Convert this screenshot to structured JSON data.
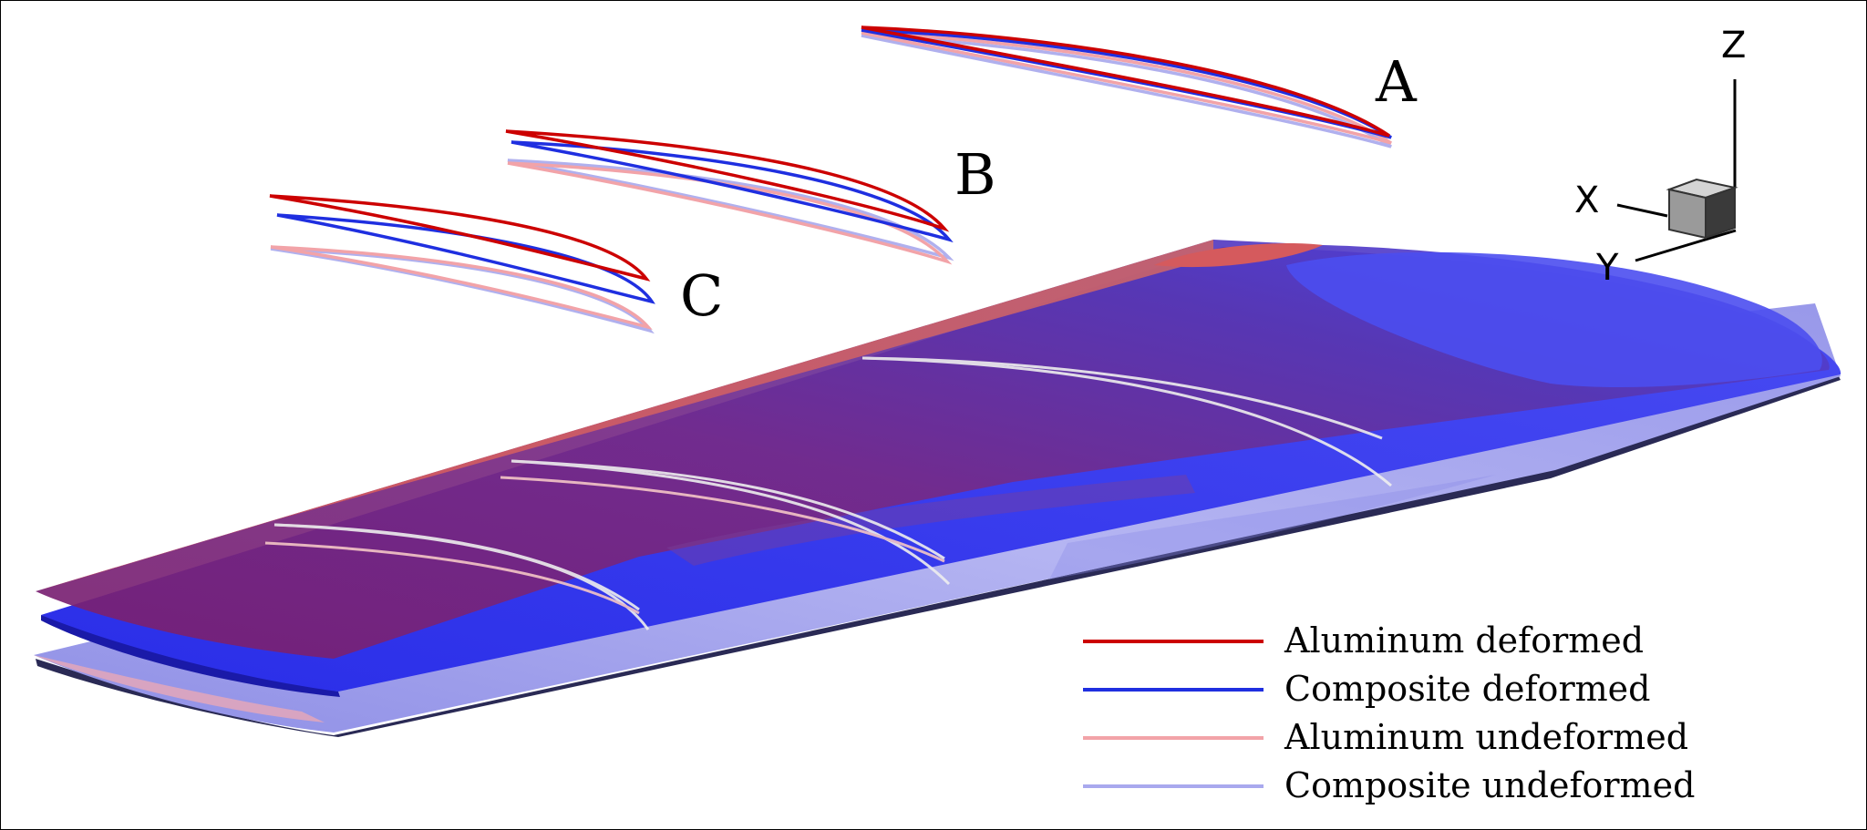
{
  "sections": [
    {
      "label": "A"
    },
    {
      "label": "B"
    },
    {
      "label": "C"
    }
  ],
  "axes": {
    "x": "X",
    "y": "Y",
    "z": "Z"
  },
  "legend": [
    {
      "label": "Aluminum deformed",
      "color": "#cc0000"
    },
    {
      "label": "Composite deformed",
      "color": "#1f2fe0"
    },
    {
      "label": "Aluminum undeformed",
      "color": "#f2a3a8"
    },
    {
      "label": "Composite undeformed",
      "color": "#a9a9ee"
    }
  ],
  "colors": {
    "aluminum_surface": "#c84b50",
    "composite_surface": "#3c3ff0",
    "undeformed_surface": "#a7a7ef",
    "overlap_surface": "#6a2a8e",
    "slice_line": "#eeeeee"
  }
}
